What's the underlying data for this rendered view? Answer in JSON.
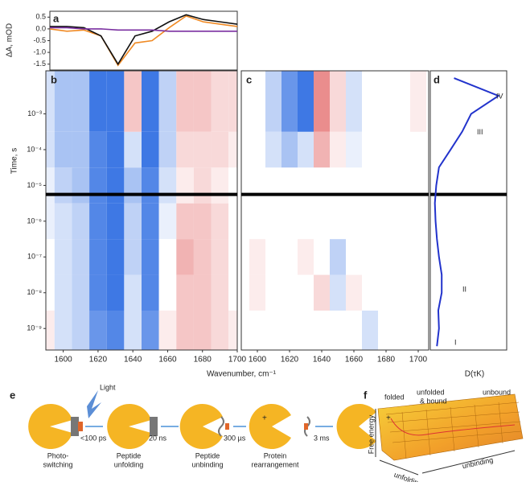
{
  "chart_data": [
    {
      "type": "line",
      "label": "a",
      "ylabel": "ΔA, mOD",
      "x": [
        1590,
        1600,
        1610,
        1620,
        1630,
        1640,
        1650,
        1660,
        1670,
        1680,
        1690,
        1700
      ],
      "xlim": [
        1590,
        1700
      ],
      "ylim": [
        -1.75,
        0.75
      ],
      "yticks": [
        {
          "value": 0.5,
          "label": "0.5"
        },
        {
          "value": 0,
          "label": "0.0"
        },
        {
          "value": -0.5,
          "label": "-0.5"
        },
        {
          "value": -1,
          "label": "-1.0"
        },
        {
          "value": -1.5,
          "label": "-1.5"
        }
      ],
      "series": [
        {
          "color": "#f08a24",
          "values": [
            0.0,
            -0.1,
            -0.05,
            -0.3,
            -1.55,
            -0.6,
            -0.5,
            0.05,
            0.55,
            0.3,
            0.2,
            0.1
          ]
        },
        {
          "color": "#111111",
          "values": [
            0.1,
            0.1,
            0.05,
            -0.3,
            -1.5,
            -0.3,
            -0.1,
            0.3,
            0.6,
            0.4,
            0.3,
            0.2
          ]
        },
        {
          "color": "#7a2fa0",
          "values": [
            0.05,
            0.05,
            0.0,
            0.0,
            -0.05,
            -0.05,
            -0.05,
            -0.1,
            -0.1,
            -0.1,
            -0.1,
            -0.1
          ]
        }
      ]
    },
    {
      "type": "heatmap",
      "label": "b",
      "ylabel": "Time, s",
      "log_y": true,
      "x": [
        1590,
        1600,
        1610,
        1620,
        1630,
        1640,
        1650,
        1660,
        1670,
        1680,
        1690,
        1700
      ],
      "y": [
        1e-09,
        1e-08,
        1e-07,
        1e-06,
        1e-05,
        0.0001,
        0.001
      ],
      "xlim": [
        1590,
        1700
      ],
      "ylim": [
        2.5e-10,
        0.016
      ],
      "break_at": 5.6e-06,
      "xticks": [
        1600,
        1620,
        1640,
        1660,
        1680,
        1700
      ],
      "yticks": [
        {
          "value": 1e-09,
          "label": "10⁻⁹"
        },
        {
          "value": 1e-08,
          "label": "10⁻⁸"
        },
        {
          "value": 1e-07,
          "label": "10⁻⁷"
        },
        {
          "value": 1e-06,
          "label": "10⁻⁶"
        },
        {
          "value": 1e-05,
          "label": "10⁻⁵"
        },
        {
          "value": 0.0001,
          "label": "10⁻⁴"
        },
        {
          "value": 0.001,
          "label": "10⁻³"
        }
      ],
      "z": [
        [
          0.1,
          -0.2,
          -0.3,
          -0.7,
          -0.8,
          -0.2,
          -0.7,
          0.1,
          0.3,
          0.3,
          0.2,
          0.1
        ],
        [
          0,
          -0.2,
          -0.3,
          -0.8,
          -0.9,
          -0.2,
          -0.8,
          0,
          0.3,
          0.3,
          0.2,
          0
        ],
        [
          0,
          -0.2,
          -0.3,
          -0.8,
          -0.9,
          -0.3,
          -0.8,
          0,
          0.4,
          0.3,
          0.2,
          0
        ],
        [
          -0.1,
          -0.2,
          -0.3,
          -0.8,
          -0.9,
          -0.3,
          -0.8,
          -0.1,
          0.3,
          0.3,
          0.2,
          0
        ],
        [
          -0.1,
          -0.3,
          -0.4,
          -0.8,
          -0.9,
          -0.4,
          -0.8,
          -0.2,
          0.1,
          0.2,
          0.1,
          0
        ],
        [
          -0.2,
          -0.4,
          -0.4,
          -0.8,
          -0.9,
          -0.2,
          -0.9,
          -0.3,
          0.2,
          0.2,
          0.2,
          0.1
        ],
        [
          -0.2,
          -0.4,
          -0.4,
          -0.9,
          -0.9,
          0.3,
          -0.9,
          -0.3,
          0.3,
          0.3,
          0.2,
          0.2
        ]
      ]
    },
    {
      "type": "heatmap",
      "label": "c",
      "log_y": true,
      "x": [
        1590,
        1600,
        1610,
        1620,
        1630,
        1640,
        1650,
        1660,
        1670,
        1680,
        1690,
        1700
      ],
      "y": [
        1e-09,
        1e-08,
        1e-07,
        1e-06,
        1e-05,
        0.0001,
        0.001
      ],
      "xlim": [
        1590,
        1700
      ],
      "ylim": [
        2.5e-10,
        0.016
      ],
      "break_at": 5.6e-06,
      "xticks": [
        1600,
        1620,
        1640,
        1660,
        1680,
        1700
      ],
      "z": [
        [
          0,
          0,
          0,
          0,
          0,
          0,
          0,
          0,
          -0.2,
          0,
          0,
          0
        ],
        [
          0,
          0.1,
          0,
          0,
          0,
          0.2,
          -0.2,
          0.1,
          0,
          0,
          0,
          0
        ],
        [
          0,
          0.1,
          0,
          0,
          0.1,
          0,
          -0.3,
          0,
          0,
          0,
          0,
          0
        ],
        [
          0,
          0,
          0,
          0,
          0,
          0,
          0,
          0,
          0,
          0,
          0,
          0
        ],
        [
          0,
          0,
          0,
          0,
          0,
          0,
          0,
          0,
          0,
          0,
          0,
          0
        ],
        [
          0,
          0,
          -0.2,
          -0.4,
          -0.2,
          0.4,
          0.1,
          -0.1,
          0,
          0,
          0,
          0
        ],
        [
          0,
          0,
          -0.3,
          -0.7,
          -0.9,
          0.6,
          0.2,
          -0.2,
          0,
          0,
          0,
          0.1
        ]
      ]
    },
    {
      "type": "density",
      "label": "d",
      "xlabel": "D(τK)",
      "log_y": true,
      "color": "#2233cc",
      "y": [
        3.2e-10,
        1e-09,
        3.2e-09,
        1e-08,
        3.2e-08,
        1e-07,
        3.2e-07,
        1e-06,
        3.2e-06,
        1e-05,
        3.2e-05,
        0.0001,
        0.00032,
        0.001,
        0.0032,
        0.01
      ],
      "values": [
        0.05,
        0.08,
        0.07,
        0.12,
        0.12,
        0.08,
        0.05,
        0.03,
        0.02,
        0.04,
        0.08,
        0.25,
        0.42,
        0.55,
        0.95,
        0.3
      ],
      "xlim": [
        0,
        1
      ],
      "ylim": [
        2.5e-10,
        0.016
      ],
      "break_at": 5.6e-06,
      "annotations": [
        {
          "text": "I",
          "y": 4e-10
        },
        {
          "text": "II",
          "y": 1.2e-08
        },
        {
          "text": "III",
          "y": 0.0003
        },
        {
          "text": "IV",
          "y": 0.003
        }
      ]
    }
  ],
  "x_axis_label": "Wavenumber, cm⁻¹",
  "scheme": {
    "label": "e",
    "light": "Light",
    "times": [
      "<100 ps",
      "20 ns",
      "300 µs",
      "3 ms"
    ],
    "steps": [
      "Photo-",
      "switching",
      "Peptide",
      "unfolding",
      "Peptide",
      "unbinding",
      "Protein",
      "rearrangement"
    ],
    "plus": "+"
  },
  "surface": {
    "label": "f",
    "zlabel": "Free energy",
    "x1": "unfolding",
    "x2": "unbinding",
    "states": [
      "folded",
      "unfolded",
      "& bound",
      "unbound"
    ]
  }
}
